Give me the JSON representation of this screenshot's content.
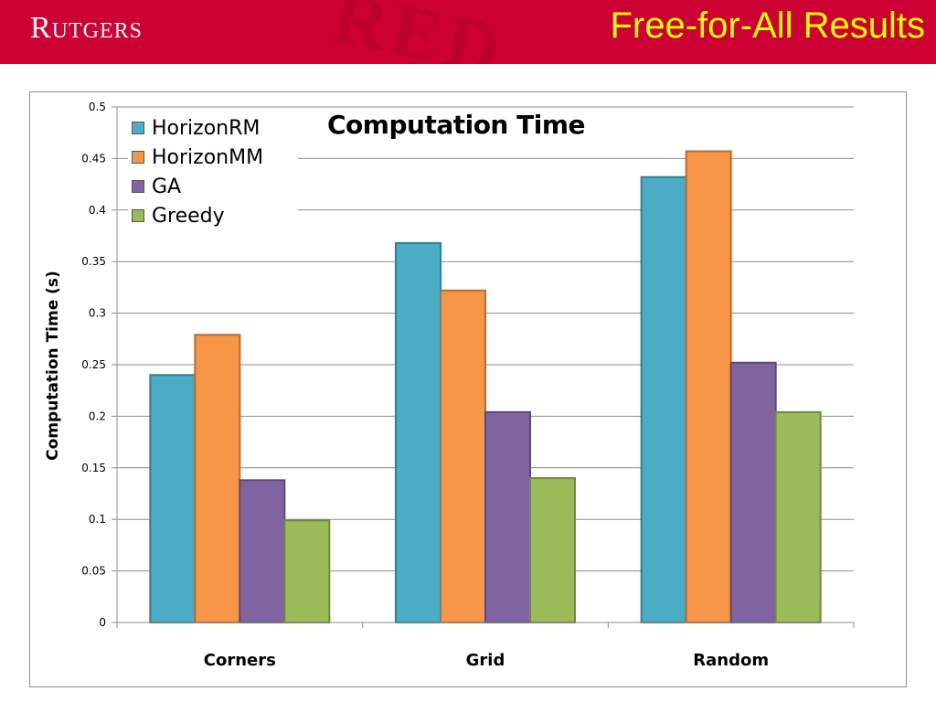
{
  "header": {
    "logo_text": "Rutgers",
    "slide_title": "Free-for-All Results",
    "watermark": "RED",
    "colors": {
      "background": "#cc0033",
      "title": "#ffff00"
    }
  },
  "chart_data": {
    "type": "bar",
    "title": "Computation Time",
    "xlabel": "",
    "ylabel": "Computation Time (s)",
    "categories": [
      "Corners",
      "Grid",
      "Random"
    ],
    "series": [
      {
        "name": "HorizonRM",
        "color": "#4bacc6",
        "values": [
          0.24,
          0.368,
          0.432
        ]
      },
      {
        "name": "HorizonMM",
        "color": "#f79646",
        "values": [
          0.279,
          0.322,
          0.457
        ]
      },
      {
        "name": "GA",
        "color": "#8064a2",
        "values": [
          0.138,
          0.204,
          0.252
        ]
      },
      {
        "name": "Greedy",
        "color": "#9bbb59",
        "values": [
          0.099,
          0.14,
          0.204
        ]
      }
    ],
    "ylim": [
      0,
      0.5
    ],
    "yticks": [
      "0",
      "0.05",
      "0.1",
      "0.15",
      "0.2",
      "0.25",
      "0.3",
      "0.35",
      "0.4",
      "0.45",
      "0.5"
    ],
    "grid": true,
    "legend_position": "top-left"
  }
}
